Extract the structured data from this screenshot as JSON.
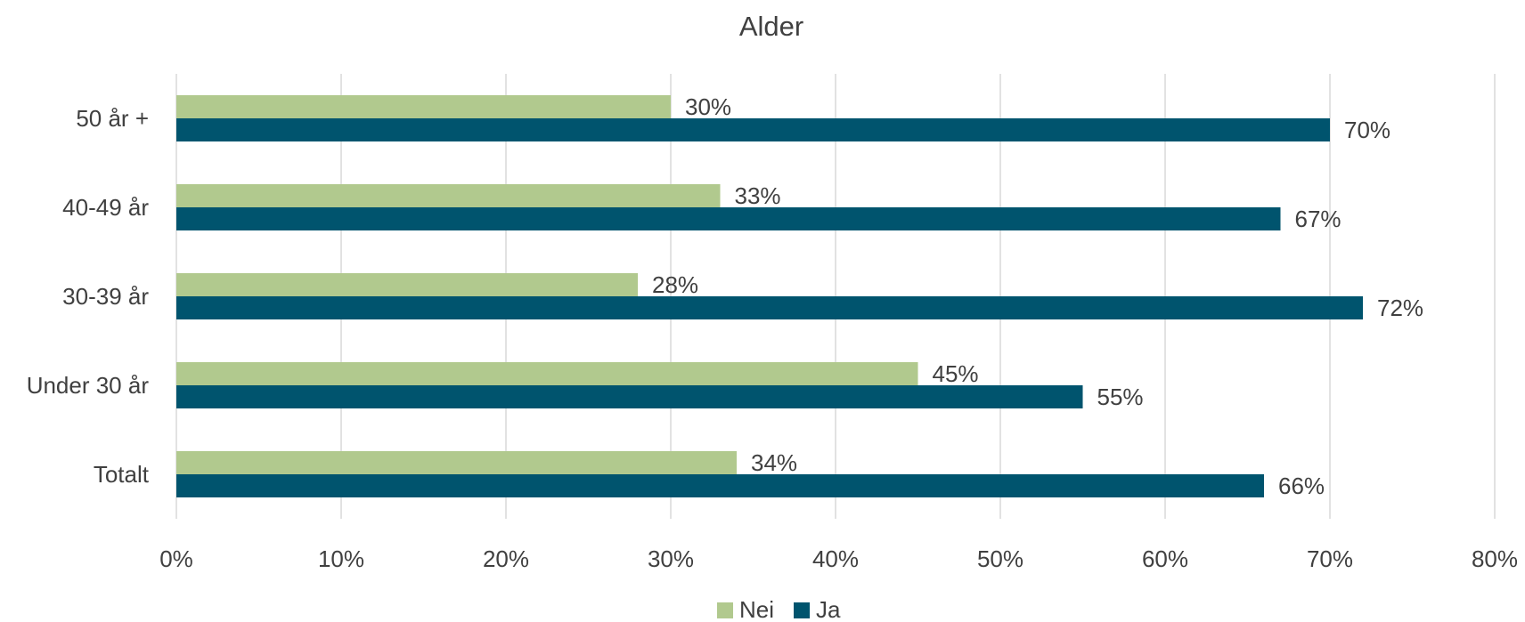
{
  "chart_data": {
    "type": "bar",
    "orientation": "horizontal",
    "title": "Alder",
    "categories": [
      "50 år +",
      "40-49 år",
      "30-39 år",
      "Under 30 år",
      "Totalt"
    ],
    "series": [
      {
        "name": "Nei",
        "color": "#b1c98e",
        "values": [
          30,
          33,
          28,
          45,
          34
        ],
        "labels": [
          "30%",
          "33%",
          "28%",
          "45%",
          "34%"
        ]
      },
      {
        "name": "Ja",
        "color": "#00546e",
        "values": [
          70,
          67,
          72,
          55,
          66
        ],
        "labels": [
          "70%",
          "67%",
          "72%",
          "55%",
          "66%"
        ]
      }
    ],
    "xlim": [
      0,
      80
    ],
    "x_ticks": [
      0,
      10,
      20,
      30,
      40,
      50,
      60,
      70,
      80
    ],
    "x_tick_labels": [
      "0%",
      "10%",
      "20%",
      "30%",
      "40%",
      "50%",
      "60%",
      "70%",
      "80%"
    ],
    "xlabel": "",
    "ylabel": "",
    "grid": true,
    "legend_position": "bottom"
  }
}
